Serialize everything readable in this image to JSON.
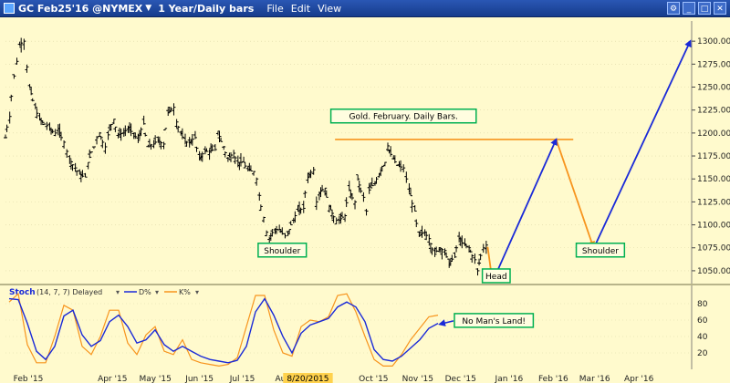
{
  "window": {
    "symbol": "GC Feb25'16 @NYMEX",
    "interval": "1 Year/Daily bars",
    "menus": [
      "File",
      "Edit",
      "View"
    ],
    "controls": [
      "settings-icon",
      "minimize-icon",
      "maximize-icon",
      "close-icon"
    ]
  },
  "colors": {
    "background": "#fffacd",
    "price_bars": "#000000",
    "annotation_line": "#f7941d",
    "blue_arrow": "#1a2ad8",
    "label_border": "#00b050",
    "stoch_d": "#1a2ad8",
    "stoch_k": "#f7941d",
    "date_highlight": "#ffd24d"
  },
  "chart_data": [
    {
      "type": "ohlc",
      "name": "price",
      "title": "",
      "x_axis": {
        "tick_labels": [
          "Feb '15",
          "Apr '15",
          "May '15",
          "Jun '15",
          "Jul '15",
          "Aug '15",
          "Oct '15",
          "Nov '15",
          "Dec '15",
          "Jan '16",
          "Feb '16",
          "Mar '16",
          "Apr '16"
        ],
        "highlight_label": "8/20/2015",
        "range": [
          "2015-01-20",
          "2016-05-15"
        ]
      },
      "y_axis": {
        "ticks": [
          1050,
          1075,
          1100,
          1125,
          1150,
          1175,
          1200,
          1225,
          1250,
          1275,
          1300
        ],
        "ylim": [
          1038,
          1322
        ],
        "tick_format": "0.00",
        "side": "right"
      },
      "closes": [
        {
          "date": "2015-01-20",
          "value": 1195
        },
        {
          "date": "2015-01-23",
          "value": 1218
        },
        {
          "date": "2015-01-26",
          "value": 1262
        },
        {
          "date": "2015-01-28",
          "value": 1278
        },
        {
          "date": "2015-01-30",
          "value": 1296
        },
        {
          "date": "2015-02-02",
          "value": 1300
        },
        {
          "date": "2015-02-04",
          "value": 1272
        },
        {
          "date": "2015-02-06",
          "value": 1250
        },
        {
          "date": "2015-02-10",
          "value": 1228
        },
        {
          "date": "2015-02-13",
          "value": 1215
        },
        {
          "date": "2015-02-18",
          "value": 1208
        },
        {
          "date": "2015-02-20",
          "value": 1205
        },
        {
          "date": "2015-02-24",
          "value": 1200
        },
        {
          "date": "2015-02-26",
          "value": 1205
        },
        {
          "date": "2015-03-02",
          "value": 1190
        },
        {
          "date": "2015-03-04",
          "value": 1180
        },
        {
          "date": "2015-03-06",
          "value": 1172
        },
        {
          "date": "2015-03-10",
          "value": 1162
        },
        {
          "date": "2015-03-13",
          "value": 1155
        },
        {
          "date": "2015-03-17",
          "value": 1152
        },
        {
          "date": "2015-03-19",
          "value": 1168
        },
        {
          "date": "2015-03-23",
          "value": 1185
        },
        {
          "date": "2015-03-25",
          "value": 1195
        },
        {
          "date": "2015-03-27",
          "value": 1200
        },
        {
          "date": "2015-03-31",
          "value": 1185
        },
        {
          "date": "2015-04-02",
          "value": 1198
        },
        {
          "date": "2015-04-06",
          "value": 1215
        },
        {
          "date": "2015-04-09",
          "value": 1198
        },
        {
          "date": "2015-04-13",
          "value": 1200
        },
        {
          "date": "2015-04-16",
          "value": 1205
        },
        {
          "date": "2015-04-20",
          "value": 1200
        },
        {
          "date": "2015-04-23",
          "value": 1192
        },
        {
          "date": "2015-04-27",
          "value": 1210
        },
        {
          "date": "2015-04-30",
          "value": 1185
        },
        {
          "date": "2015-05-04",
          "value": 1188
        },
        {
          "date": "2015-05-07",
          "value": 1192
        },
        {
          "date": "2015-05-11",
          "value": 1188
        },
        {
          "date": "2015-05-14",
          "value": 1222
        },
        {
          "date": "2015-05-18",
          "value": 1228
        },
        {
          "date": "2015-05-20",
          "value": 1212
        },
        {
          "date": "2015-05-26",
          "value": 1190
        },
        {
          "date": "2015-05-29",
          "value": 1190
        },
        {
          "date": "2015-06-02",
          "value": 1195
        },
        {
          "date": "2015-06-05",
          "value": 1172
        },
        {
          "date": "2015-06-09",
          "value": 1180
        },
        {
          "date": "2015-06-12",
          "value": 1180
        },
        {
          "date": "2015-06-16",
          "value": 1182
        },
        {
          "date": "2015-06-18",
          "value": 1202
        },
        {
          "date": "2015-06-22",
          "value": 1185
        },
        {
          "date": "2015-06-25",
          "value": 1172
        },
        {
          "date": "2015-06-29",
          "value": 1178
        },
        {
          "date": "2015-07-02",
          "value": 1168
        },
        {
          "date": "2015-07-06",
          "value": 1168
        },
        {
          "date": "2015-07-09",
          "value": 1160
        },
        {
          "date": "2015-07-13",
          "value": 1158
        },
        {
          "date": "2015-07-15",
          "value": 1150
        },
        {
          "date": "2015-07-17",
          "value": 1132
        },
        {
          "date": "2015-07-20",
          "value": 1108
        },
        {
          "date": "2015-07-22",
          "value": 1092
        },
        {
          "date": "2015-07-24",
          "value": 1085
        },
        {
          "date": "2015-07-28",
          "value": 1095
        },
        {
          "date": "2015-07-31",
          "value": 1095
        },
        {
          "date": "2015-08-04",
          "value": 1088
        },
        {
          "date": "2015-08-06",
          "value": 1090
        },
        {
          "date": "2015-08-10",
          "value": 1105
        },
        {
          "date": "2015-08-13",
          "value": 1115
        },
        {
          "date": "2015-08-17",
          "value": 1118
        },
        {
          "date": "2015-08-20",
          "value": 1152
        },
        {
          "date": "2015-08-24",
          "value": 1160
        },
        {
          "date": "2015-08-26",
          "value": 1125
        },
        {
          "date": "2015-08-28",
          "value": 1135
        },
        {
          "date": "2015-09-01",
          "value": 1140
        },
        {
          "date": "2015-09-04",
          "value": 1120
        },
        {
          "date": "2015-09-09",
          "value": 1105
        },
        {
          "date": "2015-09-11",
          "value": 1105
        },
        {
          "date": "2015-09-15",
          "value": 1110
        },
        {
          "date": "2015-09-18",
          "value": 1138
        },
        {
          "date": "2015-09-22",
          "value": 1125
        },
        {
          "date": "2015-09-24",
          "value": 1150
        },
        {
          "date": "2015-09-28",
          "value": 1130
        },
        {
          "date": "2015-09-30",
          "value": 1115
        },
        {
          "date": "2015-10-02",
          "value": 1138
        },
        {
          "date": "2015-10-06",
          "value": 1145
        },
        {
          "date": "2015-10-09",
          "value": 1155
        },
        {
          "date": "2015-10-13",
          "value": 1168
        },
        {
          "date": "2015-10-15",
          "value": 1186
        },
        {
          "date": "2015-10-19",
          "value": 1172
        },
        {
          "date": "2015-10-22",
          "value": 1165
        },
        {
          "date": "2015-10-26",
          "value": 1162
        },
        {
          "date": "2015-10-28",
          "value": 1150
        },
        {
          "date": "2015-10-30",
          "value": 1140
        },
        {
          "date": "2015-11-03",
          "value": 1115
        },
        {
          "date": "2015-11-06",
          "value": 1088
        },
        {
          "date": "2015-11-10",
          "value": 1092
        },
        {
          "date": "2015-11-13",
          "value": 1085
        },
        {
          "date": "2015-11-17",
          "value": 1068
        },
        {
          "date": "2015-11-20",
          "value": 1075
        },
        {
          "date": "2015-11-24",
          "value": 1072
        },
        {
          "date": "2015-11-27",
          "value": 1058
        },
        {
          "date": "2015-12-01",
          "value": 1065
        },
        {
          "date": "2015-12-04",
          "value": 1085
        },
        {
          "date": "2015-12-08",
          "value": 1078
        },
        {
          "date": "2015-12-11",
          "value": 1075
        },
        {
          "date": "2015-12-15",
          "value": 1062
        },
        {
          "date": "2015-12-17",
          "value": 1050
        },
        {
          "date": "2015-12-21",
          "value": 1075
        },
        {
          "date": "2015-12-23",
          "value": 1078
        }
      ],
      "overlays": {
        "resistance_line": {
          "value": 1193,
          "from": "2015-09-08",
          "to": "2016-02-22"
        },
        "orange_arrows": [
          {
            "from": {
              "date": "2015-12-24",
              "value": 1076
            },
            "to": {
              "date": "2015-12-27",
              "value": 1042
            }
          },
          {
            "from": {
              "date": "2016-02-10",
              "value": 1193
            },
            "to": {
              "date": "2016-03-07",
              "value": 1076
            }
          }
        ],
        "blue_arrows": [
          {
            "from": {
              "date": "2015-12-30",
              "value": 1047
            },
            "to": {
              "date": "2016-02-10",
              "value": 1193
            }
          },
          {
            "from": {
              "date": "2016-03-09",
              "value": 1080
            },
            "to": {
              "date": "2016-05-14",
              "value": 1300
            }
          }
        ],
        "labels": [
          {
            "text": "Gold. February. Daily Bars.",
            "date": "2015-10-26",
            "value": 1218
          },
          {
            "text": "Shoulder",
            "date": "2015-08-02",
            "value": 1072
          },
          {
            "text": "Head",
            "date": "2015-12-30",
            "value": 1044
          },
          {
            "text": "Shoulder",
            "date": "2016-03-12",
            "value": 1072
          }
        ]
      }
    },
    {
      "type": "line",
      "name": "stochastic",
      "indicator_label": "Stoch",
      "indicator_params": "(14, 7, 7) Delayed",
      "y_axis": {
        "ticks": [
          20,
          40,
          60,
          80
        ],
        "ylim": [
          0,
          100
        ]
      },
      "series": [
        {
          "name": "D%",
          "values": [
            86,
            85,
            56,
            22,
            12,
            28,
            65,
            72,
            42,
            28,
            35,
            58,
            66,
            52,
            32,
            36,
            48,
            30,
            22,
            28,
            22,
            16,
            12,
            10,
            8,
            11,
            28,
            70,
            86,
            66,
            40,
            20,
            44,
            54,
            58,
            62,
            76,
            82,
            76,
            58,
            24,
            12,
            10,
            16,
            26,
            36,
            50,
            56
          ]
        },
        {
          "name": "K%",
          "values": [
            82,
            92,
            30,
            8,
            8,
            40,
            78,
            72,
            28,
            18,
            40,
            72,
            72,
            32,
            18,
            42,
            52,
            22,
            18,
            36,
            12,
            8,
            6,
            4,
            6,
            14,
            52,
            90,
            90,
            48,
            20,
            16,
            52,
            60,
            58,
            64,
            90,
            92,
            70,
            40,
            12,
            4,
            4,
            18,
            36,
            50,
            64,
            66
          ]
        }
      ],
      "annotation": {
        "text": "No Man's Land!"
      }
    }
  ]
}
